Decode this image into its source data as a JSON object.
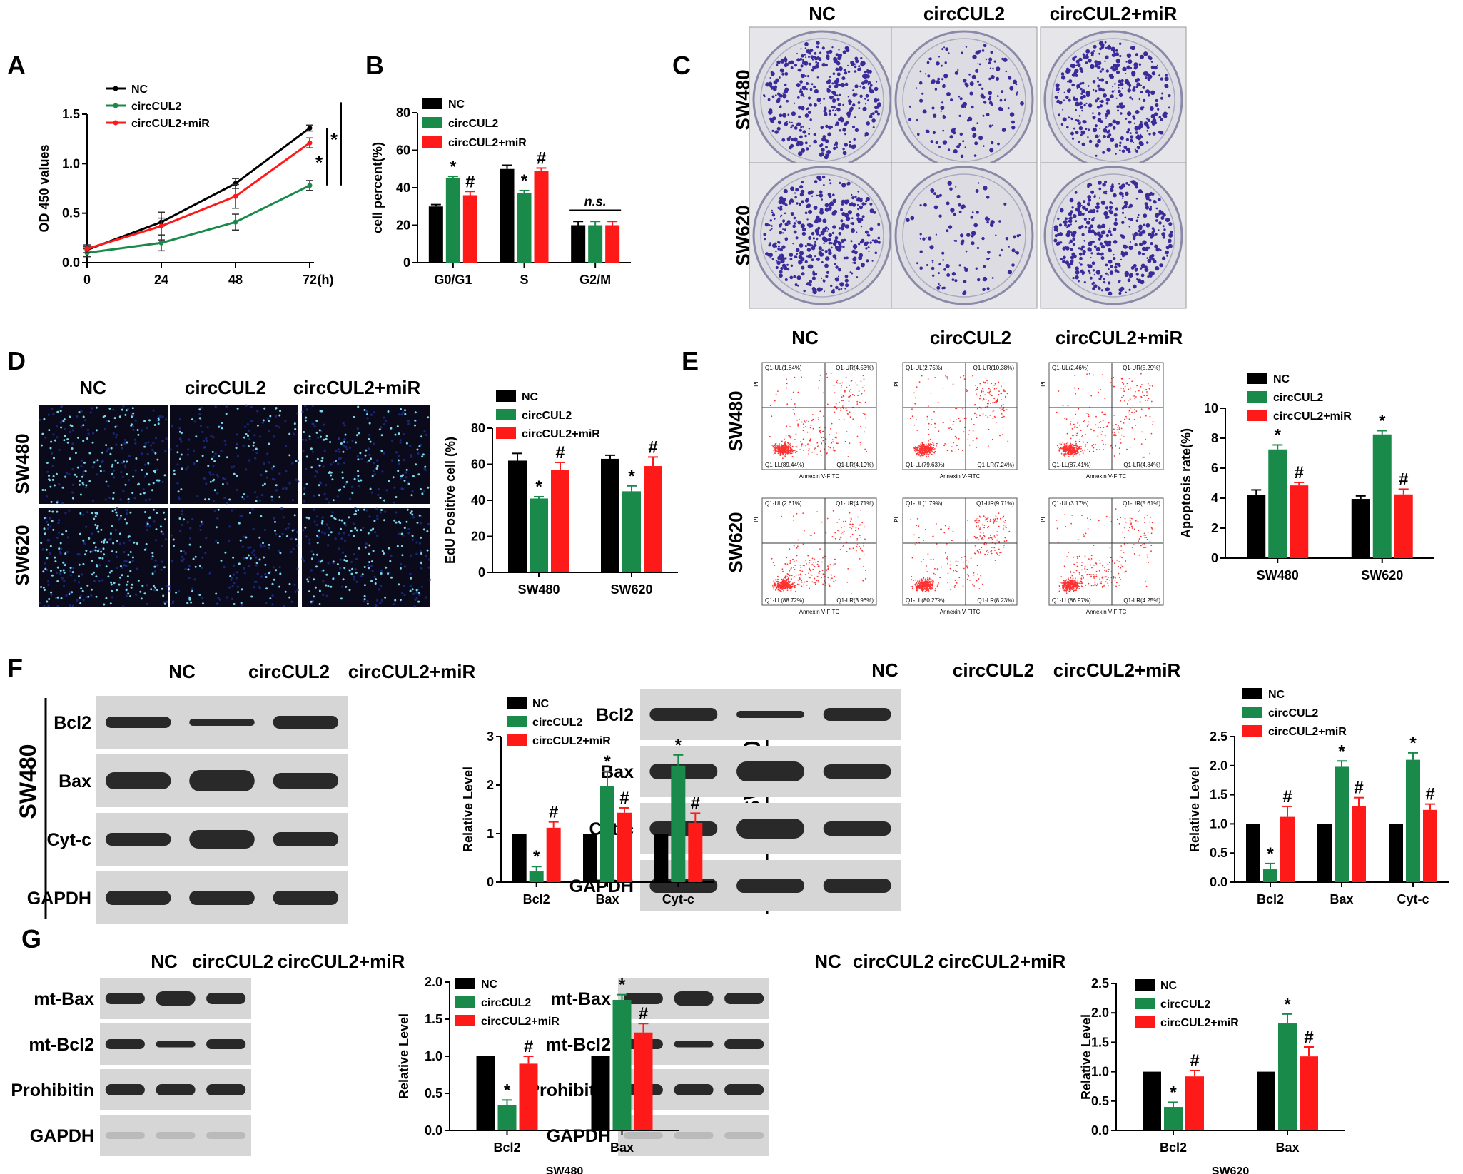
{
  "colors": {
    "nc": "#000000",
    "circ": "#1a8a4a",
    "mir": "#ff1a1a",
    "blot_bg": "#d6d6d6",
    "band": "#1a1a1a",
    "plate": "#dcdce2",
    "colony": "#3a2a9a",
    "edu_bg": "#0a0a1a",
    "edu_dot": "#7ad8e8",
    "flow_dot": "#ff3030"
  },
  "legend": [
    "NC",
    "circCUL2",
    "circCUL2+miR"
  ],
  "panels": {
    "A": "A",
    "B": "B",
    "C": "C",
    "D": "D",
    "E": "E",
    "F": "F",
    "G": "G"
  },
  "cell_lines": [
    "SW480",
    "SW620"
  ],
  "groups": [
    "NC",
    "circCUL2",
    "circCUL2+miR"
  ],
  "flow": {
    "xlabel": "Annexin V-FITC",
    "ylabel": "PI",
    "SW480": [
      [
        "Q1-UL(1.84%)",
        "Q1-UR(4.53%)",
        "Q1-LL(89.44%)",
        "Q1-LR(4.19%)"
      ],
      [
        "Q1-UL(2.75%)",
        "Q1-UR(10.38%)",
        "Q1-LL(79.63%)",
        "Q1-LR(7.24%)"
      ],
      [
        "Q1-UL(2.46%)",
        "Q1-UR(5.29%)",
        "Q1-LL(87.41%)",
        "Q1-LR(4.84%)"
      ]
    ],
    "SW620": [
      [
        "Q1-UL(2.61%)",
        "Q1-UR(4.71%)",
        "Q1-LL(88.72%)",
        "Q1-LR(3.96%)"
      ],
      [
        "Q1-UL(1.79%)",
        "Q1-UR(9.71%)",
        "Q1-LL(80.27%)",
        "Q1-LR(8.23%)"
      ],
      [
        "Q1-UL(3.17%)",
        "Q1-UR(5.61%)",
        "Q1-LL(86.97%)",
        "Q1-LR(4.25%)"
      ]
    ]
  },
  "blots": {
    "F_SW480": [
      "Bcl2",
      "Bax",
      "Cyt-c",
      "GAPDH"
    ],
    "F_SW620": [
      "Bcl2",
      "Bax",
      "Cyt-c",
      "GAPDH"
    ],
    "G_SW480": [
      "mt-Bax",
      "mt-Bcl2",
      "Prohibitin",
      "GAPDH"
    ],
    "G_SW620": [
      "mt-Bax",
      "mt-Bcl2",
      "Prohibitin",
      "GAPDH"
    ]
  },
  "chart_data": [
    {
      "id": "A",
      "type": "line",
      "x": [
        0,
        24,
        48,
        72
      ],
      "xlabel": "(h)",
      "ylabel": "OD 450 values",
      "ylim": [
        0,
        1.5
      ],
      "yticks": [
        "0.0",
        "0.5",
        "1.0",
        "1.5"
      ],
      "series": [
        {
          "name": "NC",
          "values": [
            0.13,
            0.41,
            0.8,
            1.36
          ],
          "err": [
            0.03,
            0.04,
            0.05,
            0.03
          ]
        },
        {
          "name": "circCUL2",
          "values": [
            0.1,
            0.2,
            0.41,
            0.78
          ],
          "err": [
            0.04,
            0.08,
            0.08,
            0.05
          ]
        },
        {
          "name": "circCUL2+miR",
          "values": [
            0.14,
            0.37,
            0.67,
            1.21
          ],
          "err": [
            0.04,
            0.14,
            0.12,
            0.05
          ]
        }
      ],
      "annotations": [
        "*",
        "*"
      ]
    },
    {
      "id": "B",
      "type": "bar",
      "categories": [
        "G0/G1",
        "S",
        "G2/M"
      ],
      "ylabel": "cell percent(%)",
      "ylim": [
        0,
        80
      ],
      "yticks": [
        "0",
        "20",
        "40",
        "60",
        "80"
      ],
      "series": [
        {
          "name": "NC",
          "values": [
            30,
            50,
            20
          ],
          "err": [
            1,
            2,
            2
          ]
        },
        {
          "name": "circCUL2",
          "values": [
            45,
            37,
            20
          ],
          "err": [
            1,
            1.5,
            2
          ]
        },
        {
          "name": "circCUL2+miR",
          "values": [
            36,
            49,
            20
          ],
          "err": [
            2,
            1.5,
            2
          ]
        }
      ],
      "marks": [
        [
          "",
          "*",
          "#"
        ],
        [
          "",
          "*",
          "#"
        ],
        [
          "",
          "",
          ""
        ]
      ],
      "ns": "n.s."
    },
    {
      "id": "D",
      "type": "bar",
      "categories": [
        "SW480",
        "SW620"
      ],
      "ylabel": "EdU Positive cell  (%)",
      "ylim": [
        0,
        80
      ],
      "yticks": [
        "0",
        "20",
        "40",
        "60",
        "80"
      ],
      "series": [
        {
          "name": "NC",
          "values": [
            62,
            63
          ],
          "err": [
            4,
            2
          ]
        },
        {
          "name": "circCUL2",
          "values": [
            41,
            45
          ],
          "err": [
            1,
            3
          ]
        },
        {
          "name": "circCUL2+miR",
          "values": [
            57,
            59
          ],
          "err": [
            4,
            5
          ]
        }
      ],
      "marks": [
        [
          "",
          "*",
          "#"
        ],
        [
          "",
          "*",
          "#"
        ]
      ]
    },
    {
      "id": "E",
      "type": "bar",
      "categories": [
        "SW480",
        "SW620"
      ],
      "ylabel": "Apoptosis rate(%)",
      "ylim": [
        0,
        10
      ],
      "yticks": [
        "0",
        "2",
        "4",
        "6",
        "8",
        "10"
      ],
      "series": [
        {
          "name": "NC",
          "values": [
            4.2,
            3.95
          ],
          "err": [
            0.35,
            0.2
          ]
        },
        {
          "name": "circCUL2",
          "values": [
            7.25,
            8.25
          ],
          "err": [
            0.3,
            0.25
          ]
        },
        {
          "name": "circCUL2+miR",
          "values": [
            4.85,
            4.25
          ],
          "err": [
            0.2,
            0.35
          ]
        }
      ],
      "marks": [
        [
          "",
          "*",
          "#"
        ],
        [
          "",
          "*",
          "#"
        ]
      ]
    },
    {
      "id": "F_SW480",
      "type": "bar",
      "categories": [
        "Bcl2",
        "Bax",
        "Cyt-c"
      ],
      "ylabel": "Relative Level",
      "ylim": [
        0,
        3
      ],
      "yticks": [
        "0",
        "1",
        "2",
        "3"
      ],
      "series": [
        {
          "name": "NC",
          "values": [
            1,
            1,
            1
          ],
          "err": [
            0,
            0,
            0
          ]
        },
        {
          "name": "circCUL2",
          "values": [
            0.22,
            1.98,
            2.4
          ],
          "err": [
            0.1,
            0.3,
            0.22
          ]
        },
        {
          "name": "circCUL2+miR",
          "values": [
            1.12,
            1.43,
            1.22
          ],
          "err": [
            0.12,
            0.1,
            0.2
          ]
        }
      ],
      "marks": [
        [
          "",
          "*",
          "#"
        ],
        [
          "",
          "*",
          "#"
        ],
        [
          "",
          "*",
          "#"
        ]
      ]
    },
    {
      "id": "F_SW620",
      "type": "bar",
      "categories": [
        "Bcl2",
        "Bax",
        "Cyt-c"
      ],
      "ylabel": "Relative Level",
      "ylim": [
        0,
        2.5
      ],
      "yticks": [
        "0.0",
        "0.5",
        "1.0",
        "1.5",
        "2.0",
        "2.5"
      ],
      "series": [
        {
          "name": "NC",
          "values": [
            1,
            1,
            1
          ],
          "err": [
            0,
            0,
            0
          ]
        },
        {
          "name": "circCUL2",
          "values": [
            0.22,
            1.98,
            2.1
          ],
          "err": [
            0.1,
            0.1,
            0.12
          ]
        },
        {
          "name": "circCUL2+miR",
          "values": [
            1.12,
            1.3,
            1.24
          ],
          "err": [
            0.18,
            0.15,
            0.1
          ]
        }
      ],
      "marks": [
        [
          "",
          "*",
          "#"
        ],
        [
          "",
          "*",
          "#"
        ],
        [
          "",
          "*",
          "#"
        ]
      ]
    },
    {
      "id": "G_SW480",
      "type": "bar",
      "categories": [
        "Bcl2",
        "Bax"
      ],
      "ylabel": "Relative Level",
      "xlabel": "SW480",
      "ylim": [
        0,
        2
      ],
      "yticks": [
        "0.0",
        "0.5",
        "1.0",
        "1.5",
        "2.0"
      ],
      "series": [
        {
          "name": "NC",
          "values": [
            1,
            1
          ],
          "err": [
            0,
            0
          ]
        },
        {
          "name": "circCUL2",
          "values": [
            0.34,
            1.76
          ],
          "err": [
            0.07,
            0.07
          ]
        },
        {
          "name": "circCUL2+miR",
          "values": [
            0.9,
            1.32
          ],
          "err": [
            0.1,
            0.12
          ]
        }
      ],
      "marks": [
        [
          "",
          "*",
          "#"
        ],
        [
          "",
          "*",
          "#"
        ]
      ]
    },
    {
      "id": "G_SW620",
      "type": "bar",
      "categories": [
        "Bcl2",
        "Bax"
      ],
      "ylabel": "Relative Level",
      "xlabel": "SW620",
      "ylim": [
        0,
        2.5
      ],
      "yticks": [
        "0.0",
        "0.5",
        "1.0",
        "1.5",
        "2.0",
        "2.5"
      ],
      "series": [
        {
          "name": "NC",
          "values": [
            1,
            1
          ],
          "err": [
            0,
            0
          ]
        },
        {
          "name": "circCUL2",
          "values": [
            0.4,
            1.82
          ],
          "err": [
            0.08,
            0.16
          ]
        },
        {
          "name": "circCUL2+miR",
          "values": [
            0.92,
            1.26
          ],
          "err": [
            0.1,
            0.16
          ]
        }
      ],
      "marks": [
        [
          "",
          "*",
          "#"
        ],
        [
          "",
          "*",
          "#"
        ]
      ]
    }
  ]
}
